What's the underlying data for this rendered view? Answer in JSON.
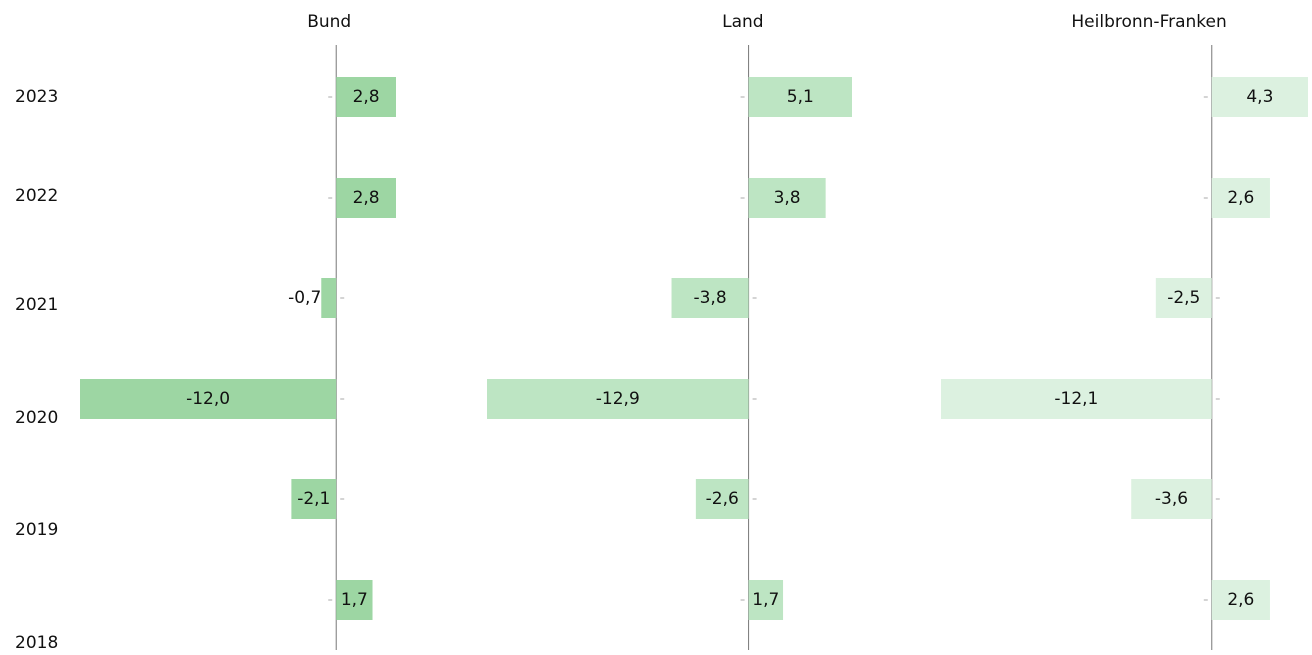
{
  "chart_data": [
    {
      "type": "bar",
      "orientation": "horizontal",
      "title": "Bund",
      "categories": [
        "2023",
        "2022",
        "2021",
        "2020",
        "2019",
        "2018"
      ],
      "values": [
        2.8,
        2.8,
        -0.7,
        -12.0,
        -2.1,
        1.7
      ],
      "value_labels": [
        "2,8",
        "2,8",
        "-0,7",
        "-12,0",
        "-2,1",
        "1,7"
      ],
      "color": "#9dd6a3"
    },
    {
      "type": "bar",
      "orientation": "horizontal",
      "title": "Land",
      "values": [
        5.1,
        3.8,
        -3.8,
        -12.9,
        -2.6,
        1.7
      ],
      "value_labels": [
        "5,1",
        "3,8",
        "-3,8",
        "-12,9",
        "-2,6",
        "1,7"
      ],
      "color": "#bde5c3"
    },
    {
      "type": "bar",
      "orientation": "horizontal",
      "title": "Heilbronn-Franken",
      "values": [
        4.3,
        2.6,
        -2.5,
        -12.1,
        -3.6,
        2.6
      ],
      "value_labels": [
        "4,3",
        "2,6",
        "-2,5",
        "-12,1",
        "-3,6",
        "2,6"
      ],
      "color": "#dcf1e0"
    }
  ]
}
